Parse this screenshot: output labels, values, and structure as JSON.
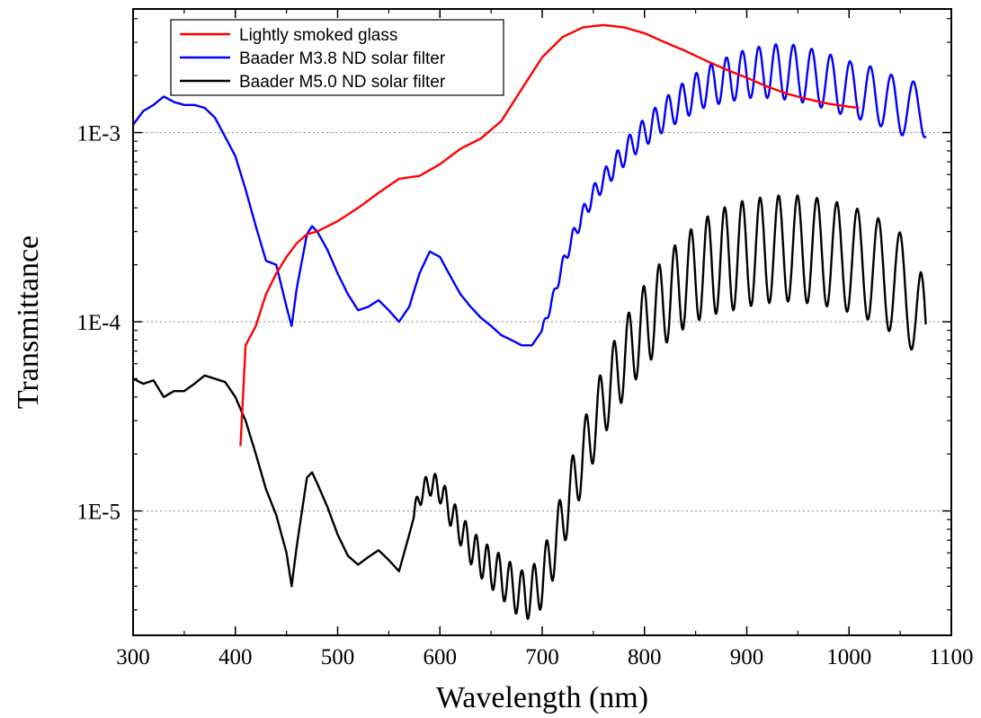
{
  "chart_data": {
    "type": "line",
    "title": "",
    "xlabel": "Wavelength (nm)",
    "ylabel": "Transmittance",
    "xlim": [
      300,
      1100
    ],
    "ylim": [
      2.2e-06,
      0.0045
    ],
    "yscale": "log",
    "grid": "dotted horizontal at decades",
    "legend_position": "top-left",
    "x_ticks": [
      300,
      400,
      500,
      600,
      700,
      800,
      900,
      1000,
      1100
    ],
    "x_tick_labels": [
      "300",
      "400",
      "500",
      "600",
      "700",
      "800",
      "900",
      "1000",
      "1100"
    ],
    "y_ticks": [
      1e-05,
      0.0001,
      0.001
    ],
    "y_tick_labels": [
      "1E-5",
      "1E-4",
      "1E-3"
    ],
    "series": [
      {
        "name": "Lightly smoked glass",
        "color": "#ff0000",
        "x": [
          405,
          410,
          420,
          430,
          440,
          450,
          460,
          470,
          480,
          500,
          520,
          540,
          560,
          580,
          600,
          620,
          640,
          660,
          680,
          700,
          720,
          740,
          760,
          780,
          800,
          820,
          840,
          860,
          880,
          900,
          920,
          940,
          960,
          980,
          1000,
          1010
        ],
        "y": [
          2.2e-05,
          7.5e-05,
          9.5e-05,
          0.00014,
          0.00018,
          0.00022,
          0.00026,
          0.00029,
          0.0003,
          0.00034,
          0.0004,
          0.00048,
          0.00057,
          0.00059,
          0.00068,
          0.00082,
          0.00093,
          0.00115,
          0.0017,
          0.0025,
          0.0032,
          0.0036,
          0.0037,
          0.0036,
          0.00335,
          0.003,
          0.0027,
          0.0024,
          0.00215,
          0.00195,
          0.00175,
          0.0016,
          0.0015,
          0.00142,
          0.00137,
          0.00135
        ]
      },
      {
        "name": "Baader M3.8 ND solar filter",
        "color": "#0000ff",
        "x": [
          300,
          310,
          320,
          330,
          340,
          350,
          360,
          370,
          380,
          390,
          400,
          410,
          420,
          430,
          440,
          450,
          455,
          460,
          470,
          475,
          480,
          490,
          500,
          510,
          520,
          530,
          540,
          550,
          560,
          570,
          580,
          590,
          600,
          610,
          620,
          630,
          640,
          650,
          660,
          670,
          680,
          690,
          700,
          710,
          720,
          730,
          740,
          750,
          760,
          770,
          780,
          790,
          800,
          820,
          840,
          860,
          880,
          900,
          920,
          940,
          960,
          980,
          1000,
          1020,
          1040,
          1060,
          1070,
          1075
        ],
        "y": [
          0.0011,
          0.0013,
          0.0014,
          0.00155,
          0.00145,
          0.0014,
          0.0014,
          0.00135,
          0.0012,
          0.00095,
          0.00075,
          0.0005,
          0.00032,
          0.00021,
          0.0002,
          0.00012,
          9.5e-05,
          0.00015,
          0.00029,
          0.00032,
          0.0003,
          0.00024,
          0.00018,
          0.00014,
          0.000115,
          0.00012,
          0.00013,
          0.000115,
          0.0001,
          0.00012,
          0.00018,
          0.000235,
          0.00022,
          0.000175,
          0.00014,
          0.00012,
          0.000105,
          9.5e-05,
          8.5e-05,
          8e-05,
          7.5e-05,
          7.5e-05,
          9e-05,
          0.00013,
          0.0002,
          0.00028,
          0.00037,
          0.00047,
          0.00056,
          0.00066,
          0.00077,
          0.00089,
          0.001,
          0.00125,
          0.0015,
          0.00175,
          0.0019,
          0.00205,
          0.0021,
          0.0021,
          0.002,
          0.00185,
          0.0017,
          0.0016,
          0.00145,
          0.0013,
          0.0014,
          0.0013
        ],
        "oscillation": {
          "start": 700,
          "amplitude": [
            0.05,
            0.34
          ],
          "period": [
            9,
            22
          ]
        }
      },
      {
        "name": "Baader M5.0 ND solar filter",
        "color": "#000000",
        "x": [
          300,
          310,
          320,
          330,
          340,
          350,
          360,
          370,
          380,
          390,
          400,
          410,
          420,
          430,
          440,
          450,
          455,
          460,
          470,
          475,
          480,
          490,
          500,
          510,
          520,
          530,
          540,
          550,
          560,
          570,
          580,
          590,
          600,
          610,
          620,
          630,
          640,
          650,
          660,
          670,
          680,
          690,
          700,
          710,
          720,
          730,
          740,
          750,
          760,
          770,
          780,
          790,
          800,
          820,
          840,
          860,
          880,
          900,
          920,
          940,
          960,
          980,
          1000,
          1020,
          1040,
          1060,
          1070,
          1075
        ],
        "y": [
          5e-05,
          4.7e-05,
          4.9e-05,
          4e-05,
          4.3e-05,
          4.3e-05,
          4.7e-05,
          5.2e-05,
          5e-05,
          4.8e-05,
          4e-05,
          3e-05,
          2e-05,
          1.3e-05,
          9.5e-06,
          6e-06,
          4e-06,
          6.5e-06,
          1.5e-05,
          1.6e-05,
          1.4e-05,
          1.05e-05,
          7.5e-06,
          5.8e-06,
          5.2e-06,
          5.7e-06,
          6.2e-06,
          5.5e-06,
          4.8e-06,
          7.5e-06,
          1.2e-05,
          1.4e-05,
          1.3e-05,
          1e-05,
          8e-06,
          6.5e-06,
          5.6e-06,
          5e-06,
          4.5e-06,
          4e-06,
          3.6e-06,
          3.7e-06,
          4.3e-06,
          6e-06,
          9e-06,
          1.35e-05,
          1.95e-05,
          2.75e-05,
          3.8e-05,
          5e-05,
          6.3e-05,
          7.8e-05,
          9.5e-05,
          0.00013,
          0.000165,
          0.000195,
          0.000215,
          0.00023,
          0.00024,
          0.000245,
          0.00024,
          0.00023,
          0.000215,
          0.000195,
          0.00017,
          0.00014,
          0.0001,
          7e-05
        ],
        "oscillation": {
          "start": 575,
          "amplitude": [
            0.12,
            0.65
          ],
          "period": [
            9,
            22
          ]
        }
      }
    ]
  }
}
